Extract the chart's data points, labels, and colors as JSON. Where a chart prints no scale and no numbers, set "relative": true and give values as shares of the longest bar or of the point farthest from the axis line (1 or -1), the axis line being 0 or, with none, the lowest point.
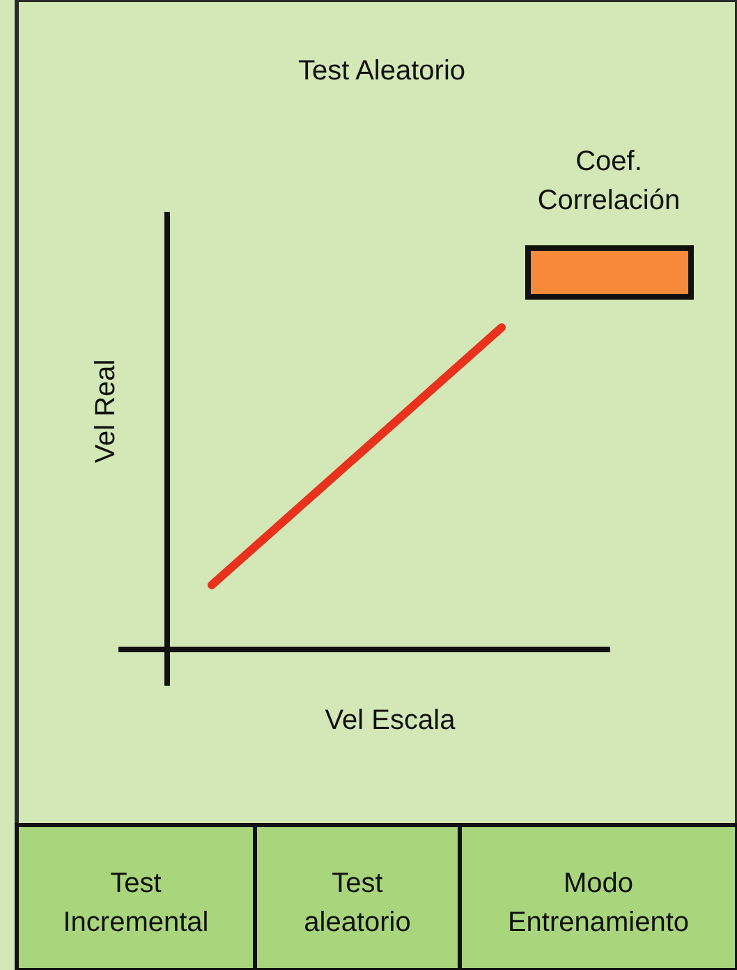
{
  "chart_data": {
    "type": "line",
    "title": "Test Aleatorio",
    "xlabel": "Vel Escala",
    "ylabel": "Vel Real",
    "relative": true,
    "categories": [
      null,
      null
    ],
    "series": [
      {
        "color": "#e8321e",
        "values": [
          0.2,
          1
        ]
      }
    ],
    "annotations": [
      "Coef. Correlación",
      "Test Incremental",
      "Test aleatorio",
      "Modo Entrenamiento"
    ]
  }
}
